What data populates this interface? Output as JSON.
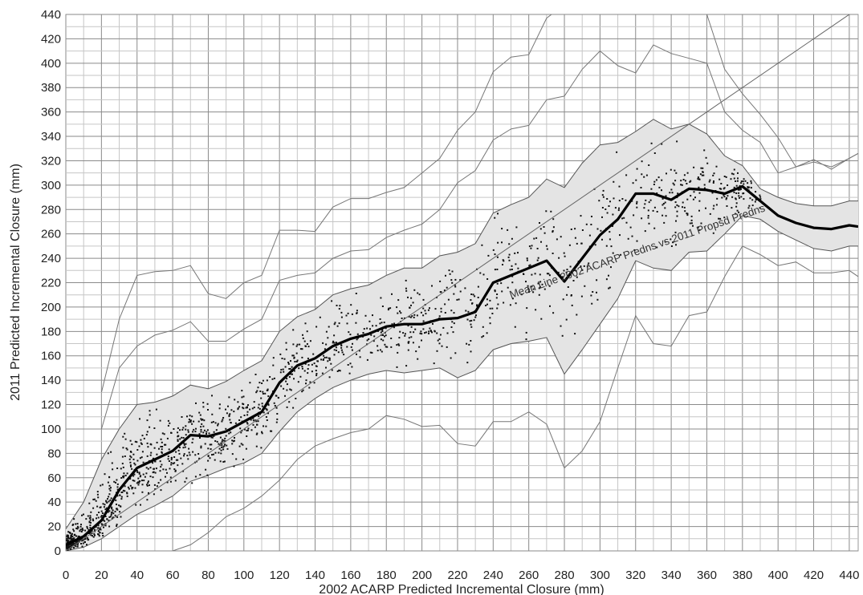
{
  "chart_data": {
    "type": "scatter",
    "title": "",
    "xlabel": "2002 ACARP Predicted Incremental Closure (mm)",
    "ylabel": "2011 Predicted Incremental Closure (mm)",
    "xlim": [
      0,
      445
    ],
    "ylim": [
      0,
      440
    ],
    "x_ticks": [
      0,
      20,
      40,
      60,
      80,
      100,
      120,
      140,
      160,
      180,
      200,
      220,
      240,
      260,
      280,
      300,
      320,
      340,
      360,
      380,
      400,
      420,
      440
    ],
    "y_ticks": [
      0,
      20,
      40,
      60,
      80,
      100,
      120,
      140,
      160,
      180,
      200,
      220,
      240,
      260,
      280,
      300,
      320,
      340,
      360,
      380,
      400,
      420,
      440
    ],
    "x_tick_labels": [
      "0",
      "20",
      "40",
      "60",
      "80",
      "100",
      "120",
      "140",
      "160",
      "180",
      "200",
      "220",
      "240",
      "260",
      "280",
      "300",
      "320",
      "340",
      "360",
      "380",
      "400",
      "420",
      "440"
    ],
    "y_tick_labels": [
      "0",
      "20",
      "40",
      "60",
      "80",
      "100",
      "120",
      "140",
      "160",
      "180",
      "200",
      "220",
      "240",
      "260",
      "280",
      "300",
      "320",
      "340",
      "360",
      "380",
      "400",
      "420",
      "440"
    ],
    "grid": true,
    "colors": {
      "mean": "#000000",
      "band_fill": "#e4e4e4",
      "band_line": "#555555",
      "envelope": "#777777",
      "points": "#111111",
      "equality": "#666666"
    },
    "annotation": {
      "text": "Mean Line 2002 ACARP Predns vs 2011 Propsd Predns",
      "x": 250,
      "y": 207,
      "angle_deg": -19
    },
    "series": [
      {
        "role": "mean",
        "x": [
          0,
          10,
          20,
          30,
          40,
          50,
          60,
          70,
          80,
          90,
          100,
          110,
          120,
          130,
          140,
          150,
          160,
          170,
          180,
          190,
          200,
          210,
          220,
          230,
          240,
          250,
          260,
          270,
          280,
          290,
          300,
          310,
          320,
          330,
          340,
          350,
          360,
          370,
          380,
          390,
          400,
          410,
          420,
          430,
          440,
          445
        ],
        "y": [
          5,
          12,
          25,
          50,
          68,
          75,
          82,
          95,
          94,
          98,
          106,
          114,
          138,
          152,
          158,
          168,
          174,
          178,
          184,
          186,
          186,
          190,
          191,
          196,
          220,
          226,
          232,
          238,
          221,
          240,
          259,
          272,
          293,
          293,
          288,
          297,
          296,
          293,
          299,
          287,
          275,
          269,
          265,
          264,
          267,
          266
        ]
      },
      {
        "role": "band-upper",
        "x": [
          0,
          10,
          20,
          30,
          40,
          50,
          60,
          70,
          80,
          90,
          100,
          110,
          120,
          130,
          140,
          150,
          160,
          170,
          180,
          190,
          200,
          210,
          220,
          230,
          240,
          250,
          260,
          270,
          280,
          290,
          300,
          310,
          320,
          330,
          340,
          350,
          360,
          370,
          380,
          390,
          400,
          410,
          420,
          430,
          440,
          445
        ],
        "y": [
          18,
          40,
          75,
          100,
          120,
          122,
          127,
          136,
          133,
          139,
          148,
          156,
          180,
          192,
          198,
          210,
          215,
          218,
          226,
          232,
          232,
          242,
          245,
          252,
          277,
          284,
          290,
          305,
          298,
          318,
          333,
          335,
          344,
          354,
          346,
          350,
          342,
          324,
          316,
          297,
          290,
          285,
          283,
          283,
          287,
          287
        ]
      },
      {
        "role": "band-lower",
        "x": [
          0,
          10,
          20,
          30,
          40,
          50,
          60,
          70,
          80,
          90,
          100,
          110,
          120,
          130,
          140,
          150,
          160,
          170,
          180,
          190,
          200,
          210,
          220,
          230,
          240,
          250,
          260,
          270,
          280,
          290,
          300,
          310,
          320,
          330,
          340,
          350,
          360,
          370,
          380,
          390,
          400,
          410,
          420,
          430,
          440,
          445
        ],
        "y": [
          0,
          3,
          10,
          20,
          30,
          37,
          45,
          57,
          62,
          68,
          72,
          80,
          98,
          114,
          125,
          134,
          140,
          145,
          148,
          146,
          148,
          150,
          142,
          148,
          165,
          170,
          172,
          175,
          145,
          165,
          186,
          207,
          238,
          232,
          230,
          245,
          246,
          260,
          275,
          272,
          262,
          255,
          248,
          246,
          250,
          250
        ]
      },
      {
        "role": "envelope-1",
        "x": [
          20,
          30,
          40,
          50,
          60,
          70,
          80,
          90,
          100,
          110,
          120,
          130,
          140,
          150,
          160,
          170,
          180,
          190,
          200,
          210,
          220,
          230,
          240,
          250,
          260,
          270,
          280,
          290,
          300,
          310,
          320,
          330,
          340,
          350,
          360,
          370,
          380,
          390,
          400,
          410,
          420,
          430,
          440,
          445
        ],
        "y": [
          130,
          190,
          226,
          229,
          230,
          234,
          211,
          207,
          220,
          226,
          263,
          263,
          262,
          282,
          289,
          289,
          294,
          298,
          310,
          322,
          345,
          360,
          393,
          405,
          407,
          437,
          448,
          448,
          448,
          448,
          448,
          448,
          448,
          448,
          448,
          448,
          448,
          448,
          448,
          448,
          448,
          448,
          448,
          448
        ]
      },
      {
        "role": "envelope-2",
        "x": [
          20,
          30,
          40,
          50,
          60,
          70,
          80,
          90,
          100,
          110,
          120,
          130,
          140,
          150,
          160,
          170,
          180,
          190,
          200,
          210,
          220,
          230,
          240,
          250,
          260,
          270,
          280,
          290,
          300,
          310,
          320,
          330,
          340,
          350,
          360,
          370,
          380,
          390,
          400,
          410,
          420,
          430,
          440,
          445
        ],
        "y": [
          100,
          150,
          168,
          177,
          181,
          188,
          172,
          172,
          182,
          190,
          222,
          226,
          228,
          240,
          246,
          247,
          257,
          263,
          268,
          280,
          302,
          312,
          337,
          346,
          349,
          370,
          373,
          395,
          410,
          398,
          392,
          415,
          408,
          404,
          400,
          360,
          345,
          335,
          310,
          315,
          321,
          313,
          322,
          326
        ]
      },
      {
        "role": "envelope-3",
        "x": [
          360,
          370,
          380,
          390,
          400,
          410,
          420,
          430,
          440,
          445
        ],
        "y": [
          440,
          395,
          375,
          358,
          339,
          315,
          319,
          315,
          322,
          326
        ]
      },
      {
        "role": "envelope-4",
        "x": [
          20,
          30,
          40,
          50,
          60,
          70,
          80,
          90,
          100,
          110,
          120,
          130,
          140,
          150,
          160,
          170,
          180,
          190,
          200,
          210,
          220,
          230,
          240,
          250,
          260,
          270,
          280,
          290,
          300,
          310,
          320,
          330,
          340,
          350,
          360,
          370,
          380,
          390,
          400,
          410,
          420,
          430,
          440,
          445
        ],
        "y": [
          -20,
          -20,
          -10,
          -5,
          0,
          5,
          15,
          28,
          35,
          45,
          58,
          75,
          86,
          92,
          97,
          100,
          111,
          108,
          102,
          103,
          88,
          86,
          106,
          106,
          114,
          104,
          68,
          82,
          106,
          150,
          193,
          170,
          168,
          193,
          196,
          225,
          250,
          243,
          234,
          237,
          228,
          228,
          230,
          225
        ]
      },
      {
        "role": "equality",
        "x": [
          0,
          445
        ],
        "y": [
          0,
          445
        ]
      }
    ]
  }
}
